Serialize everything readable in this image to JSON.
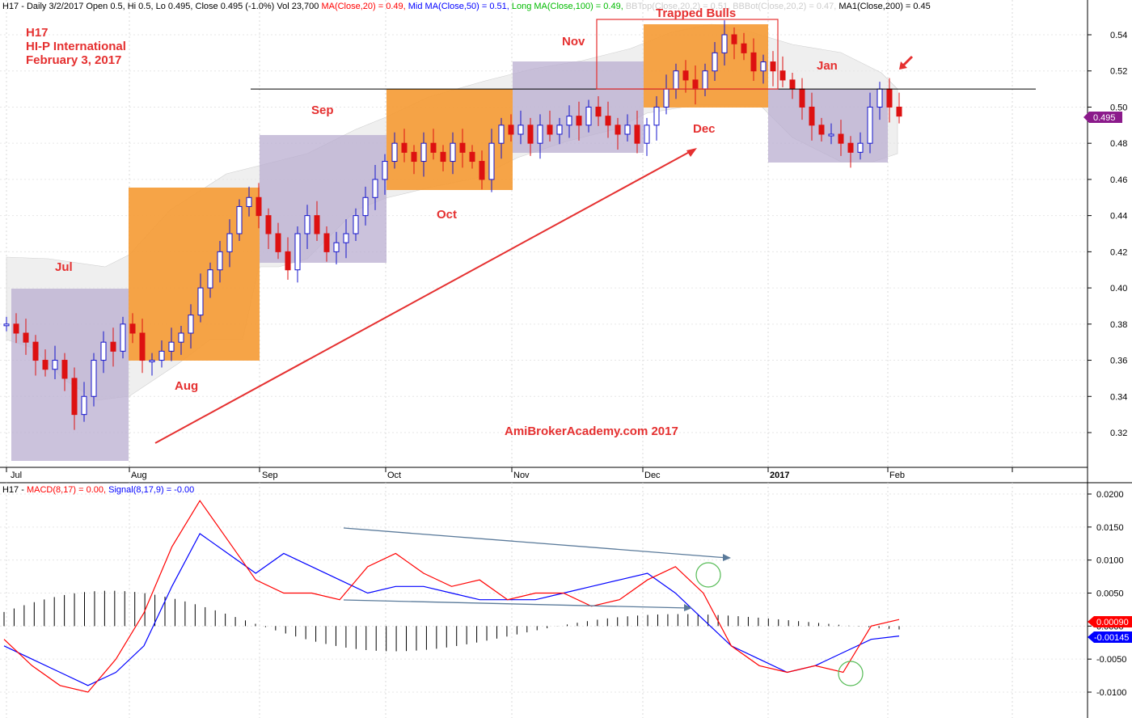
{
  "header": {
    "ticker": "H17",
    "info": "Daily 3/2/2017 Open 0.5, Hi 0.5, Lo 0.495, Close 0.495 (-1.0%) Vol 23,700",
    "ma20": "MA(Close,20) = 0.49,",
    "ma50": "Mid MA(Close,50) = 0.51,",
    "ma100": "Long MA(Close,100) = 0.49,",
    "bbtop": "BBTop(Close,20,2) = 0.51,",
    "bbbot": "BBBot(Close,20,2) = 0.47,",
    "ma200": "MA1(Close,200) = 0.45"
  },
  "title_block": {
    "line1": "H17",
    "line2": "HI-P International",
    "line3": "February 3, 2017"
  },
  "annotations": {
    "trapped": "Trapped Bulls",
    "watermark": "AmiBrokerAcademy.com  2017",
    "months": {
      "jul": "Jul",
      "aug": "Aug",
      "sep": "Sep",
      "oct": "Oct",
      "nov": "Nov",
      "dec": "Dec",
      "jan": "Jan"
    }
  },
  "x_axis": {
    "jul": "Jul",
    "aug": "Aug",
    "sep": "Sep",
    "oct": "Oct",
    "nov": "Nov",
    "dec": "Dec",
    "y2017": "2017",
    "feb": "Feb"
  },
  "price_panel": {
    "y_ticks": [
      "0.54",
      "0.52",
      "0.50",
      "0.48",
      "0.46",
      "0.44",
      "0.42",
      "0.40",
      "0.38",
      "0.36",
      "0.34",
      "0.32"
    ],
    "last_price": "0.495",
    "resistance": 0.51
  },
  "macd_panel": {
    "header_ticker": "H17 -",
    "macd_label": "MACD(8,17) = 0.00,",
    "signal_label": "Signal(8,17,9) = -0.00",
    "y_ticks": [
      "0.0200",
      "0.0150",
      "0.0100",
      "0.0050",
      "0.0000",
      "-0.0050",
      "-0.0100"
    ],
    "macd_badge": "0.00090",
    "signal_badge": "-0.00145"
  },
  "colors": {
    "bull": "#1515cc",
    "bear": "#dd1111",
    "macd": "#ff0000",
    "signal": "#0000ff",
    "purple_box": "#b9aed0",
    "orange_box": "#f59a33",
    "badge": "#8b1a8b"
  },
  "chart_data": {
    "type": "candlestick",
    "x": [
      "Jul",
      "Aug",
      "Sep",
      "Oct",
      "Nov",
      "Dec",
      "2017",
      "Feb"
    ],
    "ylim": [
      0.3,
      0.55
    ],
    "close_series": [
      0.38,
      0.375,
      0.37,
      0.36,
      0.355,
      0.36,
      0.35,
      0.33,
      0.34,
      0.36,
      0.37,
      0.365,
      0.38,
      0.375,
      0.36,
      0.36,
      0.365,
      0.37,
      0.375,
      0.385,
      0.4,
      0.41,
      0.42,
      0.43,
      0.445,
      0.45,
      0.44,
      0.43,
      0.42,
      0.41,
      0.43,
      0.44,
      0.43,
      0.42,
      0.425,
      0.43,
      0.44,
      0.45,
      0.46,
      0.47,
      0.48,
      0.475,
      0.47,
      0.48,
      0.475,
      0.47,
      0.48,
      0.475,
      0.47,
      0.46,
      0.48,
      0.49,
      0.485,
      0.49,
      0.48,
      0.49,
      0.485,
      0.49,
      0.495,
      0.49,
      0.5,
      0.495,
      0.49,
      0.485,
      0.49,
      0.48,
      0.49,
      0.5,
      0.51,
      0.52,
      0.515,
      0.51,
      0.52,
      0.53,
      0.54,
      0.535,
      0.53,
      0.52,
      0.525,
      0.52,
      0.515,
      0.51,
      0.5,
      0.49,
      0.485,
      0.485,
      0.48,
      0.475,
      0.48,
      0.5,
      0.51,
      0.5,
      0.495
    ],
    "macd_series": [
      -0.002,
      -0.006,
      -0.009,
      -0.01,
      -0.005,
      0.002,
      0.012,
      0.019,
      0.013,
      0.007,
      0.005,
      0.005,
      0.004,
      0.009,
      0.011,
      0.008,
      0.006,
      0.007,
      0.004,
      0.005,
      0.005,
      0.003,
      0.004,
      0.007,
      0.009,
      0.005,
      -0.003,
      -0.006,
      -0.007,
      -0.006,
      -0.007,
      0.0,
      0.001
    ],
    "signal_series": [
      -0.003,
      -0.005,
      -0.007,
      -0.009,
      -0.007,
      -0.003,
      0.006,
      0.014,
      0.011,
      0.008,
      0.011,
      0.009,
      0.007,
      0.005,
      0.006,
      0.006,
      0.005,
      0.004,
      0.004,
      0.004,
      0.005,
      0.006,
      0.007,
      0.008,
      0.005,
      0.001,
      -0.003,
      -0.005,
      -0.007,
      -0.006,
      -0.004,
      -0.002,
      -0.0015
    ],
    "ylim_macd": [
      -0.012,
      0.022
    ]
  }
}
